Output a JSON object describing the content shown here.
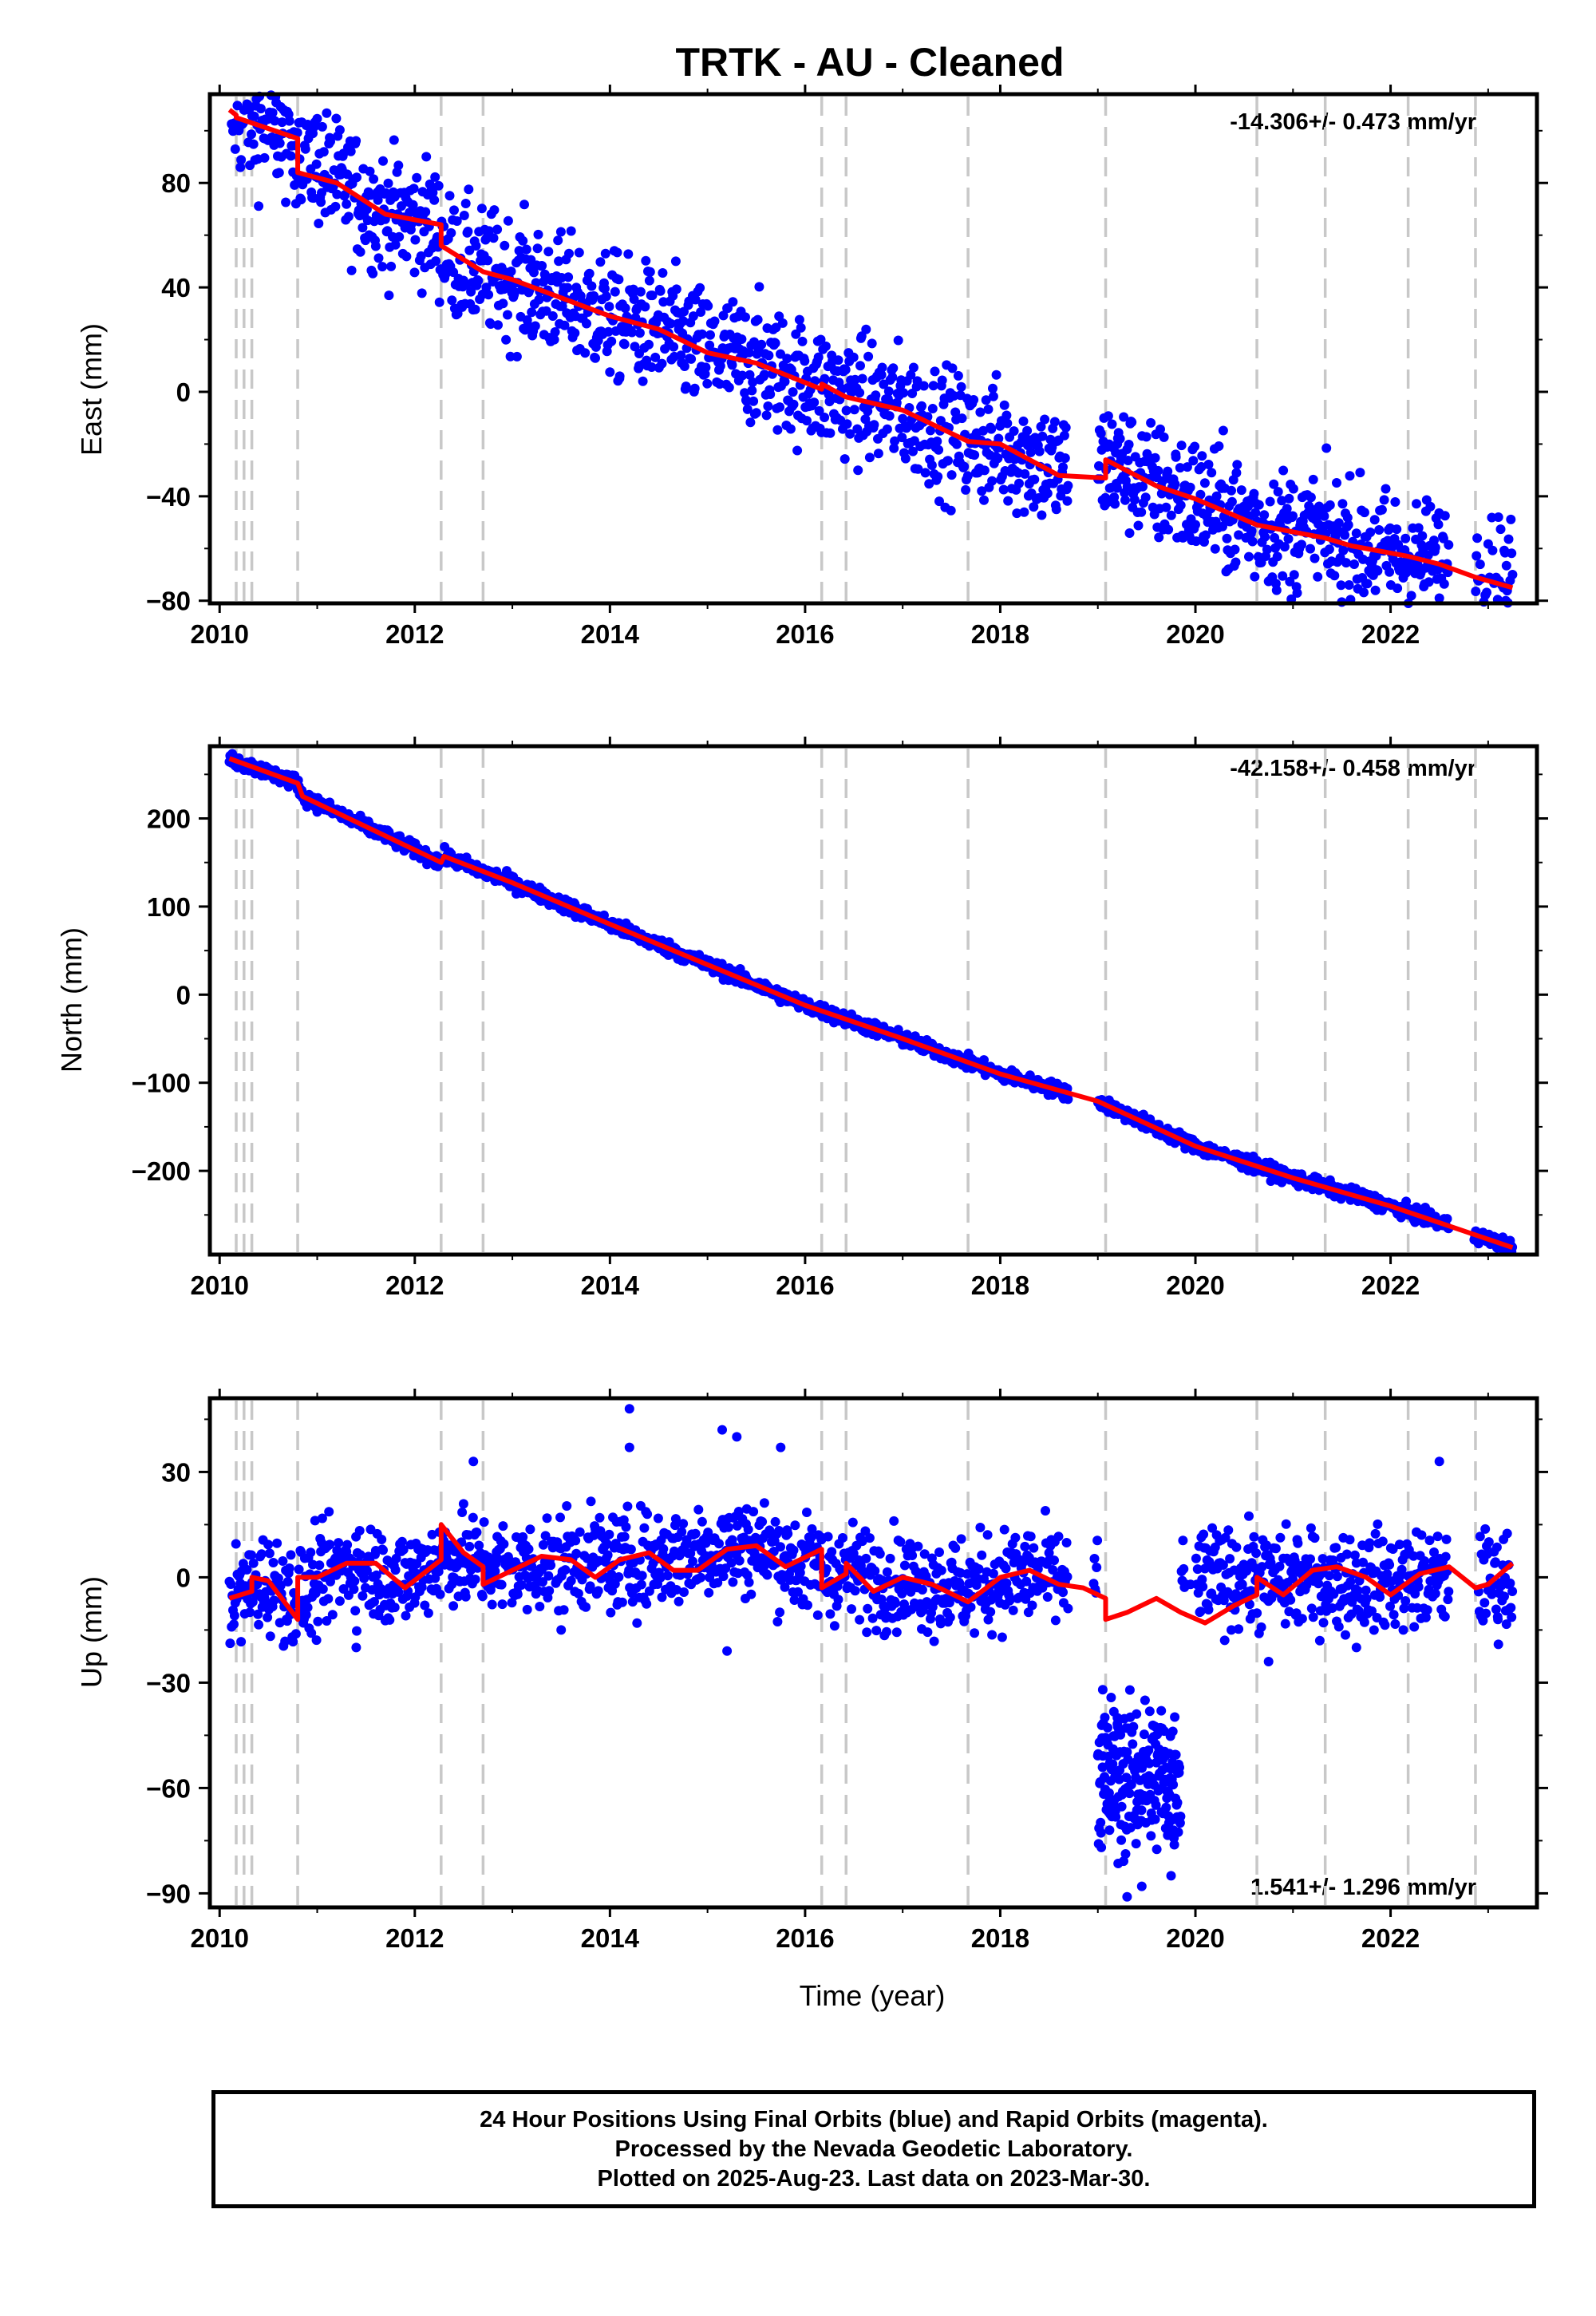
{
  "title": "TRTK  - AU - Cleaned",
  "xlabel": "Time (year)",
  "colors": {
    "data": "#0000ff",
    "model": "#ff0000",
    "breaks": "#c8c8c8",
    "frame": "#000000"
  },
  "footer": {
    "line1": "24 Hour Positions Using Final Orbits (blue) and Rapid Orbits (magenta).",
    "line2": "Processed by the Nevada Geodetic Laboratory.",
    "line3": "Plotted on 2025-Aug-23. Last data on 2023-Mar-30."
  },
  "chart_data": [
    {
      "type": "scatter",
      "name": "east",
      "ylabel": "East (mm)",
      "rate_label": "-14.306+/- 0.473 mm/yr",
      "xlim": [
        2009.9,
        2023.5
      ],
      "ylim": [
        -81,
        114
      ],
      "xticks": [
        "2010",
        "2012",
        "2014",
        "2016",
        "2018",
        "2020",
        "2022"
      ],
      "yticks": [
        "80",
        "40",
        "0",
        "−40",
        "−80"
      ],
      "grid": false,
      "breaks": [
        2010.17,
        2010.25,
        2010.33,
        2010.8,
        2012.27,
        2012.7,
        2016.17,
        2016.42,
        2017.67,
        2019.08,
        2020.63,
        2021.33,
        2022.18,
        2022.87
      ],
      "model_x": [
        2010.1,
        2010.17,
        2010.17,
        2010.8,
        2010.8,
        2011.2,
        2011.7,
        2012.27,
        2012.27,
        2012.7,
        2013.0,
        2013.5,
        2014.0,
        2014.5,
        2015.0,
        2015.5,
        2016.17,
        2016.17,
        2016.42,
        2017.0,
        2017.67,
        2018.0,
        2018.6,
        2019.08,
        2019.08,
        2019.6,
        2020.0,
        2020.63,
        2021.33,
        2021.6,
        2022.18,
        2022.5,
        2022.87,
        2023.25
      ],
      "model_y": [
        108,
        106,
        105,
        97,
        84,
        80,
        68,
        64,
        56,
        46,
        43,
        36,
        29,
        24,
        15,
        11,
        1,
        3,
        -2,
        -7,
        -19,
        -20,
        -32,
        -33,
        -26,
        -36,
        -41,
        -51,
        -56,
        -59,
        -63,
        -66,
        -71,
        -75
      ],
      "trend_x": [
        2010.1,
        2010.8,
        2011.2,
        2011.7,
        2012.2,
        2012.35,
        2012.7,
        2013.0,
        2013.5,
        2014.0,
        2014.5,
        2015.0,
        2015.5,
        2016.2,
        2016.5,
        2017.0,
        2017.67,
        2018.0,
        2018.6,
        2019.0,
        2019.1,
        2019.6,
        2020.0,
        2020.63,
        2021.33,
        2021.6,
        2022.18,
        2022.5,
        2023.25
      ],
      "trend_y": [
        107,
        96,
        80,
        68,
        64,
        52,
        46,
        43,
        36,
        29,
        24,
        15,
        11,
        1,
        -2,
        -7,
        -19,
        -20,
        -30,
        -30,
        -26,
        -36,
        -41,
        -51,
        -56,
        -59,
        -63,
        -66,
        -74
      ],
      "scatter": 12,
      "gaps": [
        [
          2018.7,
          2019.0
        ],
        [
          2022.6,
          2022.85
        ]
      ],
      "outliers": [
        [
          2014.1,
          6
        ],
        [
          2014.3,
          10
        ],
        [
          2016.2,
          5
        ],
        [
          2022.5,
          -79
        ],
        [
          2023.25,
          -70
        ],
        [
          2019.2,
          -20
        ],
        [
          2019.3,
          -22
        ],
        [
          2019.8,
          -25
        ]
      ]
    },
    {
      "type": "scatter",
      "name": "north",
      "ylabel": "North (mm)",
      "rate_label": "-42.158+/- 0.458 mm/yr",
      "xlim": [
        2009.9,
        2023.5
      ],
      "ylim": [
        -295,
        282
      ],
      "xticks": [
        "2010",
        "2012",
        "2014",
        "2016",
        "2018",
        "2020",
        "2022"
      ],
      "yticks": [
        "200",
        "100",
        "0",
        "−100",
        "−200"
      ],
      "grid": false,
      "breaks": [
        2010.17,
        2010.25,
        2010.33,
        2010.8,
        2012.27,
        2012.7,
        2016.17,
        2016.42,
        2017.67,
        2019.08,
        2020.63,
        2021.33,
        2022.18,
        2022.87
      ],
      "model_x": [
        2010.1,
        2010.8,
        2010.85,
        2012.27,
        2012.3,
        2013.0,
        2014.0,
        2015.0,
        2016.0,
        2017.0,
        2018.0,
        2019.0,
        2020.0,
        2021.0,
        2022.0,
        2023.25
      ],
      "model_y": [
        268,
        240,
        225,
        150,
        157,
        127,
        80,
        34,
        -12,
        -50,
        -90,
        -121,
        -172,
        -208,
        -240,
        -287
      ],
      "trend_x": [
        2010.1,
        2010.8,
        2010.85,
        2012.27,
        2012.3,
        2013.0,
        2014.0,
        2015.0,
        2016.0,
        2017.0,
        2018.0,
        2019.0,
        2020.0,
        2021.0,
        2022.0,
        2023.25
      ],
      "trend_y": [
        268,
        240,
        225,
        150,
        157,
        127,
        80,
        34,
        -12,
        -50,
        -90,
        -121,
        -172,
        -208,
        -240,
        -287
      ],
      "scatter": 4,
      "gaps": [
        [
          2018.7,
          2019.0
        ],
        [
          2022.6,
          2022.85
        ]
      ],
      "outliers": []
    },
    {
      "type": "scatter",
      "name": "up",
      "ylabel": "Up (mm)",
      "rate_label": "1.541+/- 1.296 mm/yr",
      "xlim": [
        2009.9,
        2023.5
      ],
      "ylim": [
        -94,
        51
      ],
      "xticks": [
        "2010",
        "2012",
        "2014",
        "2016",
        "2018",
        "2020",
        "2022"
      ],
      "yticks": [
        "30",
        "0",
        "−30",
        "−60",
        "−90"
      ],
      "grid": false,
      "breaks": [
        2010.17,
        2010.25,
        2010.33,
        2010.8,
        2012.27,
        2012.7,
        2016.17,
        2016.42,
        2017.67,
        2019.08,
        2020.63,
        2021.33,
        2022.18,
        2022.87
      ],
      "model_x": [
        2010.1,
        2010.33,
        2010.33,
        2010.5,
        2010.8,
        2010.8,
        2011.0,
        2011.3,
        2011.6,
        2011.9,
        2012.27,
        2012.27,
        2012.5,
        2012.7,
        2012.7,
        2013.0,
        2013.3,
        2013.6,
        2013.85,
        2014.1,
        2014.4,
        2014.65,
        2014.9,
        2015.2,
        2015.5,
        2015.8,
        2016.17,
        2016.17,
        2016.42,
        2016.42,
        2016.7,
        2017.0,
        2017.3,
        2017.67,
        2018.0,
        2018.3,
        2018.6,
        2018.85,
        2019.08,
        2019.08,
        2019.3,
        2019.6,
        2019.85,
        2020.1,
        2020.4,
        2020.63,
        2020.63,
        2020.9,
        2021.2,
        2021.45,
        2021.75,
        2022.0,
        2022.3,
        2022.6,
        2022.87,
        2022.87,
        2023.0,
        2023.25
      ],
      "model_y": [
        -6,
        -4,
        0,
        -1,
        -12,
        0,
        0,
        4,
        4,
        -3,
        5,
        15,
        7,
        3,
        -2,
        2,
        6,
        5,
        0,
        5,
        7,
        2,
        2,
        8,
        9,
        3,
        8,
        -3,
        1,
        4,
        -4,
        0,
        -2,
        -7,
        0,
        2,
        -2,
        -3,
        -6,
        -12,
        -10,
        -6,
        -10,
        -13,
        -8,
        -5,
        0,
        -5,
        2,
        3,
        0,
        -5,
        1,
        3,
        -3,
        -3,
        -2,
        4
      ],
      "trend_x": [
        2010.1,
        2010.5,
        2010.8,
        2011.3,
        2011.9,
        2012.3,
        2013.0,
        2013.6,
        2014.1,
        2014.65,
        2015.2,
        2015.5,
        2016.0,
        2016.5,
        2017.0,
        2017.67,
        2018.3,
        2018.7
      ],
      "trend_y": [
        -6,
        -1,
        -6,
        4,
        -1,
        6,
        2,
        5,
        4,
        6,
        9,
        9,
        3,
        1,
        -1,
        -3,
        1,
        -1
      ],
      "scatter": 7,
      "gaps": [
        [
          2018.7,
          2018.95
        ],
        [
          2019.9,
          2020.0
        ],
        [
          2022.6,
          2022.9
        ]
      ],
      "outliers": [
        [
          2014.2,
          48
        ],
        [
          2014.2,
          37
        ],
        [
          2015.15,
          42
        ],
        [
          2015.3,
          40
        ],
        [
          2015.75,
          37
        ],
        [
          2012.6,
          33
        ],
        [
          2022.5,
          33
        ],
        [
          2011.4,
          -20
        ],
        [
          2013.5,
          -15
        ],
        [
          2015.2,
          -21
        ],
        [
          2021.65,
          -20
        ],
        [
          2020.75,
          -24
        ],
        [
          2019.95,
          -2
        ],
        [
          2023.1,
          -12
        ]
      ],
      "cluster": {
        "x": [
          2019.0,
          2019.85
        ],
        "y_center": -57,
        "y_spread": 11,
        "outliers": [
          [
            2019.05,
            -32
          ],
          [
            2019.2,
            -40
          ],
          [
            2019.3,
            -91
          ],
          [
            2019.45,
            -88
          ],
          [
            2019.75,
            -85
          ],
          [
            2019.65,
            -38
          ],
          [
            2019.5,
            -50
          ],
          [
            2019.12,
            -72
          ]
        ]
      },
      "post_gap": {
        "x": [
          2020.0,
          2020.63
        ],
        "center": 0
      }
    }
  ]
}
